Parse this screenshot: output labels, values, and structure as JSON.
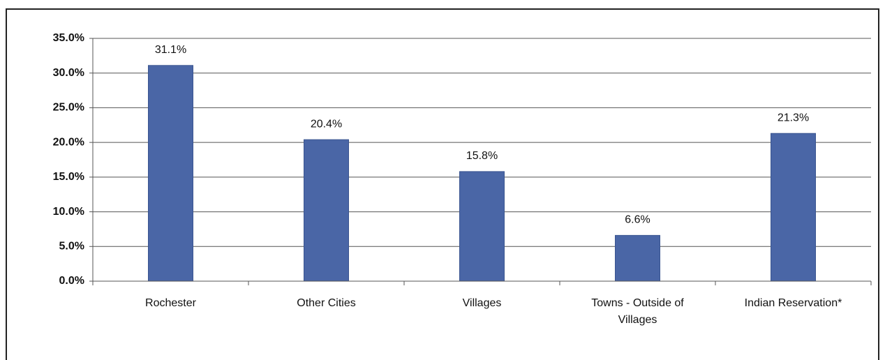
{
  "chart_data": {
    "type": "bar",
    "categories": [
      "Rochester",
      "Other Cities",
      "Villages",
      "Towns - Outside of Villages",
      "Indian Reservation*"
    ],
    "values": [
      31.1,
      20.4,
      15.8,
      6.6,
      21.3
    ],
    "value_labels": [
      "31.1%",
      "20.4%",
      "15.8%",
      "6.6%",
      "21.3%"
    ],
    "color": "#4a66a6",
    "ylim": [
      0,
      35
    ],
    "yticks": [
      {
        "value": 0,
        "label": "0.0%"
      },
      {
        "value": 5,
        "label": "5.0%"
      },
      {
        "value": 10,
        "label": "10.0%"
      },
      {
        "value": 15,
        "label": "15.0%"
      },
      {
        "value": 20,
        "label": "20.0%"
      },
      {
        "value": 25,
        "label": "25.0%"
      },
      {
        "value": 30,
        "label": "30.0%"
      },
      {
        "value": 35,
        "label": "35.0%"
      }
    ],
    "grid": true
  }
}
